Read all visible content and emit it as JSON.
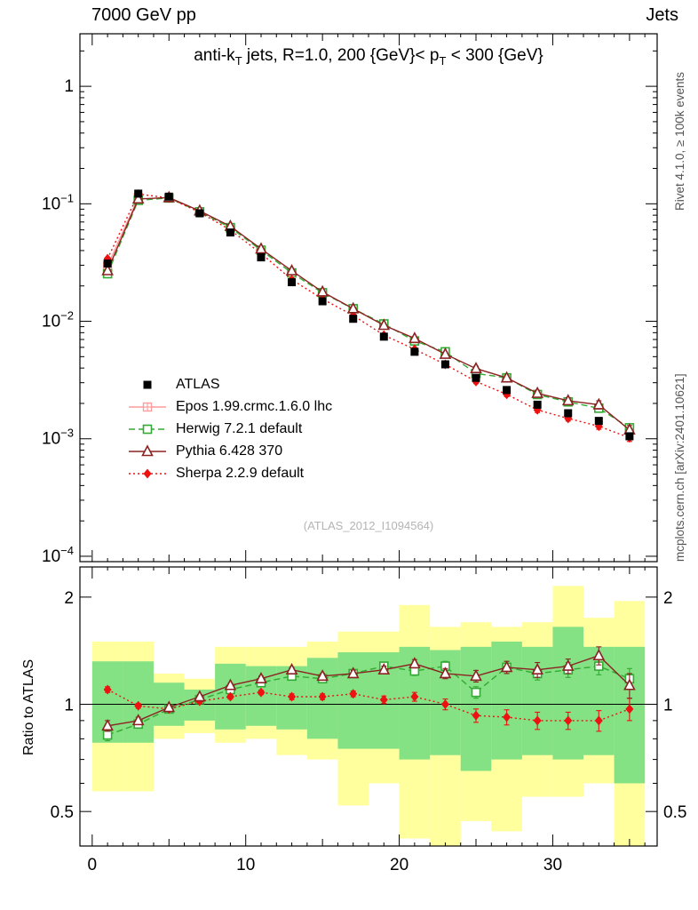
{
  "header": {
    "left": "7000 GeV pp",
    "right": "Jets"
  },
  "title": {
    "pre": "anti-k",
    "sub1": "T",
    "mid": " jets, R=1.0, 200 {GeV}< p",
    "sub2": "T",
    "post": " < 300 {GeV}"
  },
  "side_notes": {
    "rivet": "Rivet 4.1.0, ≥ 100k events",
    "mcplots": "mcplots.cern.ch [arXiv:2401.10621]"
  },
  "watermark": "(ATLAS_2012_I1094564)",
  "ratio_axis_label": "Ratio to ATLAS",
  "colors": {
    "atlas": "#000000",
    "epos": "#ff9c9c",
    "herwig": "#33aa33",
    "pythia": "#8b2222",
    "sherpa": "#ee1111",
    "band_yellow": "#ffff9e",
    "band_green": "#84e184"
  },
  "chart_data": [
    {
      "type": "line",
      "panel": "main",
      "title_plain": "anti-kT jets, R=1.0, 200 {GeV}< pT < 300 {GeV}",
      "yscale": "log",
      "xlim": [
        -0.8,
        36.8
      ],
      "ylim": [
        9e-05,
        2.8
      ],
      "ytick_exponents": [
        0,
        -1,
        -2,
        -3,
        -4
      ],
      "x": [
        1,
        3,
        5,
        7,
        9,
        11,
        13,
        15,
        17,
        19,
        21,
        23,
        25,
        27,
        29,
        31,
        33,
        35
      ],
      "series": [
        {
          "id": "atlas",
          "name": "ATLAS",
          "color": "#000000",
          "marker": "square-filled",
          "line": "none",
          "z": 5,
          "yerr_rel": 0.035,
          "values": [
            0.031,
            0.122,
            0.115,
            0.083,
            0.057,
            0.035,
            0.0215,
            0.0148,
            0.0105,
            0.0074,
            0.0055,
            0.0043,
            0.0033,
            0.0026,
            0.00195,
            0.00165,
            0.00142,
            0.00105
          ]
        },
        {
          "id": "epos",
          "name": "Epos 1.99.crmc.1.6.0 lhc",
          "color": "#ff9c9c",
          "marker": "square-cross-open",
          "line": "solid",
          "z": 1,
          "values": [
            0.0295,
            0.113,
            null,
            null,
            null,
            null,
            null,
            null,
            null,
            null,
            null,
            null,
            null,
            null,
            null,
            null,
            null,
            null
          ]
        },
        {
          "id": "herwig",
          "name": "Herwig 7.2.1 default",
          "color": "#33aa33",
          "marker": "square-open",
          "line": "dashed",
          "z": 2,
          "yerr_rel": [
            0.03,
            0.02,
            0.015,
            0.015,
            0.015,
            0.015,
            0.02,
            0.02,
            0.025,
            0.03,
            0.035,
            0.04,
            0.04,
            0.05,
            0.05,
            0.06,
            0.07,
            0.08
          ],
          "values": [
            0.0254,
            0.107,
            0.112,
            0.0855,
            0.0627,
            0.0403,
            0.0258,
            0.0175,
            0.0128,
            0.0095,
            0.0068,
            0.0055,
            0.0036,
            0.0033,
            0.00238,
            0.00206,
            0.00182,
            0.00124
          ]
        },
        {
          "id": "pythia",
          "name": "Pythia 6.428 370",
          "color": "#8b2222",
          "marker": "triangle-open",
          "line": "solid",
          "z": 4,
          "yerr_rel": [
            0.03,
            0.02,
            0.015,
            0.015,
            0.015,
            0.02,
            0.02,
            0.02,
            0.025,
            0.03,
            0.035,
            0.04,
            0.045,
            0.05,
            0.06,
            0.06,
            0.08,
            0.09
          ],
          "values": [
            0.027,
            0.11,
            0.113,
            0.0872,
            0.0644,
            0.0413,
            0.0269,
            0.0178,
            0.0128,
            0.00925,
            0.00715,
            0.00525,
            0.00396,
            0.0033,
            0.00244,
            0.00211,
            0.00195,
            0.00119
          ]
        },
        {
          "id": "sherpa",
          "name": "Sherpa 2.2.9 default",
          "color": "#ee1111",
          "marker": "diamond-filled",
          "line": "dotted",
          "z": 3,
          "yerr_rel": [
            0.02,
            0.015,
            0.01,
            0.01,
            0.015,
            0.015,
            0.02,
            0.02,
            0.02,
            0.025,
            0.03,
            0.035,
            0.04,
            0.045,
            0.05,
            0.05,
            0.06,
            0.07
          ],
          "values": [
            0.0341,
            0.121,
            0.112,
            0.0847,
            0.0599,
            0.0378,
            0.0226,
            0.0155,
            0.0112,
            0.00762,
            0.00578,
            0.0043,
            0.00307,
            0.00239,
            0.00176,
            0.00149,
            0.00128,
            0.00102
          ]
        }
      ]
    },
    {
      "type": "line",
      "panel": "ratio",
      "ylabel": "Ratio to ATLAS",
      "yscale": "log",
      "xlim": [
        -0.8,
        36.8
      ],
      "ylim": [
        0.4,
        2.43
      ],
      "ymajor": [
        {
          "v": 0.5,
          "t": "0.5"
        },
        {
          "v": 1,
          "t": "1"
        },
        {
          "v": 2,
          "t": "2"
        }
      ],
      "yminor": [
        0.4,
        0.6,
        0.7,
        0.8,
        0.9
      ],
      "xticks": [
        {
          "v": 0,
          "t": "0"
        },
        {
          "v": 10,
          "t": "10"
        },
        {
          "v": 20,
          "t": "20"
        },
        {
          "v": 30,
          "t": "30"
        }
      ],
      "refline": 1,
      "x": [
        1,
        3,
        5,
        7,
        9,
        11,
        13,
        15,
        17,
        19,
        21,
        23,
        25,
        27,
        29,
        31,
        33,
        35
      ],
      "bands": {
        "yellow": [
          [
            0.57,
            1.5
          ],
          [
            0.57,
            1.5
          ],
          [
            0.8,
            1.22
          ],
          [
            0.83,
            1.18
          ],
          [
            0.78,
            1.45
          ],
          [
            0.8,
            1.45
          ],
          [
            0.72,
            1.45
          ],
          [
            0.7,
            1.5
          ],
          [
            0.52,
            1.6
          ],
          [
            0.6,
            1.6
          ],
          [
            0.42,
            1.9
          ],
          [
            0.35,
            1.65
          ],
          [
            0.47,
            1.7
          ],
          [
            0.44,
            1.65
          ],
          [
            0.55,
            1.7
          ],
          [
            0.55,
            2.15
          ],
          [
            0.6,
            1.75
          ],
          [
            0.35,
            1.95
          ]
        ],
        "green": [
          [
            0.78,
            1.32
          ],
          [
            0.78,
            1.32
          ],
          [
            0.87,
            1.15
          ],
          [
            0.9,
            1.1
          ],
          [
            0.85,
            1.3
          ],
          [
            0.87,
            1.28
          ],
          [
            0.85,
            1.28
          ],
          [
            0.8,
            1.35
          ],
          [
            0.75,
            1.4
          ],
          [
            0.75,
            1.4
          ],
          [
            0.7,
            1.45
          ],
          [
            0.72,
            1.42
          ],
          [
            0.65,
            1.45
          ],
          [
            0.7,
            1.5
          ],
          [
            0.72,
            1.45
          ],
          [
            0.7,
            1.65
          ],
          [
            0.72,
            1.45
          ],
          [
            0.6,
            1.45
          ]
        ]
      },
      "series": [
        {
          "id": "herwig",
          "name": "Herwig 7.2.1 default",
          "color": "#33aa33",
          "marker": "square-open",
          "line": "dashed",
          "z": 2,
          "yerr": [
            0.03,
            0.02,
            0.015,
            0.015,
            0.015,
            0.015,
            0.02,
            0.02,
            0.025,
            0.03,
            0.035,
            0.04,
            0.04,
            0.05,
            0.05,
            0.06,
            0.07,
            0.08
          ],
          "values": [
            0.82,
            0.88,
            0.97,
            1.03,
            1.1,
            1.15,
            1.2,
            1.18,
            1.22,
            1.28,
            1.24,
            1.28,
            1.08,
            1.27,
            1.22,
            1.25,
            1.28,
            1.18
          ]
        },
        {
          "id": "pythia",
          "name": "Pythia 6.428 370",
          "color": "#8b2222",
          "marker": "triangle-open",
          "line": "solid",
          "z": 4,
          "yerr": [
            0.03,
            0.02,
            0.015,
            0.015,
            0.015,
            0.02,
            0.02,
            0.02,
            0.025,
            0.03,
            0.035,
            0.04,
            0.045,
            0.05,
            0.06,
            0.06,
            0.08,
            0.09
          ],
          "values": [
            0.87,
            0.9,
            0.98,
            1.05,
            1.13,
            1.18,
            1.25,
            1.2,
            1.22,
            1.25,
            1.3,
            1.22,
            1.2,
            1.27,
            1.25,
            1.28,
            1.37,
            1.13
          ]
        },
        {
          "id": "sherpa",
          "name": "Sherpa 2.2.9 default",
          "color": "#ee1111",
          "marker": "diamond-filled",
          "line": "dotted",
          "z": 3,
          "yerr": [
            0.02,
            0.015,
            0.01,
            0.01,
            0.015,
            0.015,
            0.02,
            0.02,
            0.02,
            0.025,
            0.03,
            0.035,
            0.04,
            0.045,
            0.05,
            0.05,
            0.06,
            0.07
          ],
          "values": [
            1.1,
            0.99,
            0.97,
            1.02,
            1.05,
            1.08,
            1.05,
            1.05,
            1.07,
            1.03,
            1.05,
            1.0,
            0.93,
            0.92,
            0.9,
            0.9,
            0.9,
            0.97
          ]
        }
      ]
    }
  ]
}
